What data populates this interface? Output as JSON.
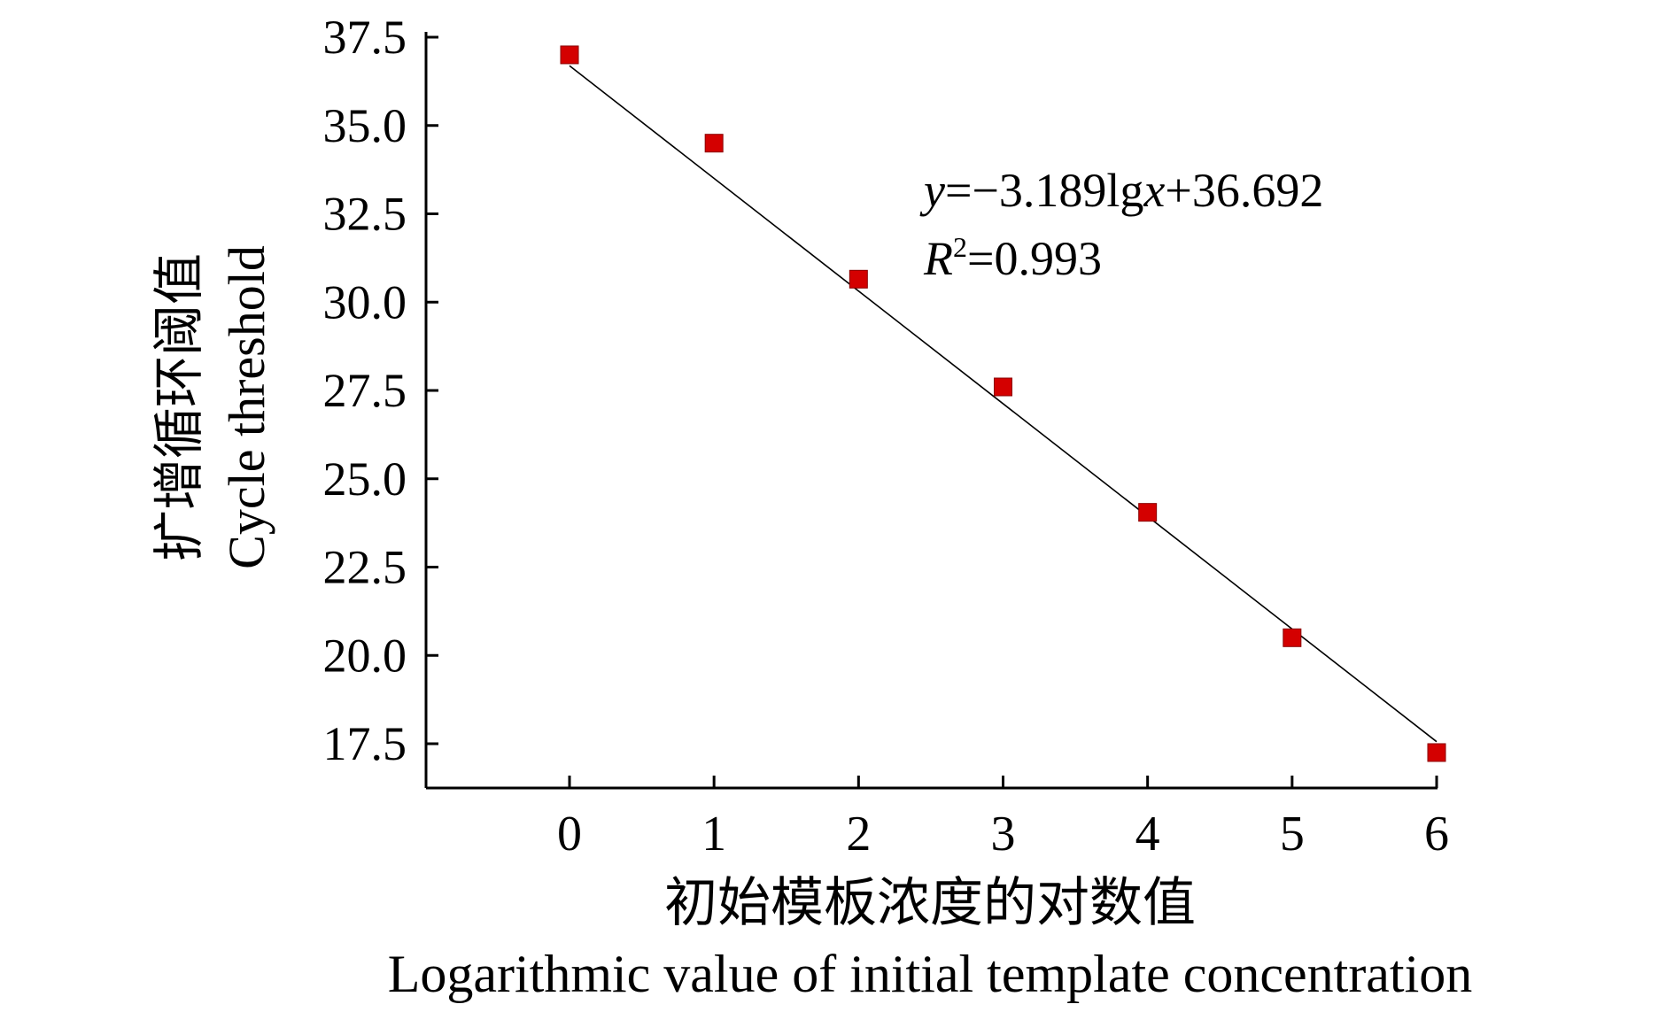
{
  "chart_data": {
    "type": "scatter",
    "title": "",
    "xlabel_cn": "初始模板浓度的对数值",
    "xlabel": "Logarithmic value of initial template concentration",
    "ylabel_cn": "扩增循环阈值",
    "ylabel": "Cycle threshold",
    "x": [
      0,
      1,
      2,
      3,
      4,
      5,
      6
    ],
    "y": [
      37.0,
      34.5,
      30.65,
      27.6,
      24.05,
      20.5,
      17.25
    ],
    "xticks": [
      "0",
      "1",
      "2",
      "3",
      "4",
      "5",
      "6"
    ],
    "yticks": [
      "37.5",
      "35.0",
      "32.5",
      "30.0",
      "27.5",
      "25.0",
      "22.5",
      "20.0",
      "17.5"
    ],
    "ytick_values": [
      37.5,
      35.0,
      32.5,
      30.0,
      27.5,
      25.0,
      22.5,
      20.0,
      17.5
    ],
    "xlim": [
      -1,
      6
    ],
    "ylim": [
      16.2,
      37.7
    ],
    "fit": {
      "slope": -3.189,
      "intercept": 36.692
    },
    "equation": {
      "y_var": "y",
      "rest": "=−3.189lg",
      "x_var": "x",
      "tail": "+36.692"
    },
    "r2": {
      "r": "R",
      "sup": "2",
      "value": "=0.993"
    },
    "grid": false,
    "marker_color": "#d40000",
    "line_color": "#000000"
  }
}
